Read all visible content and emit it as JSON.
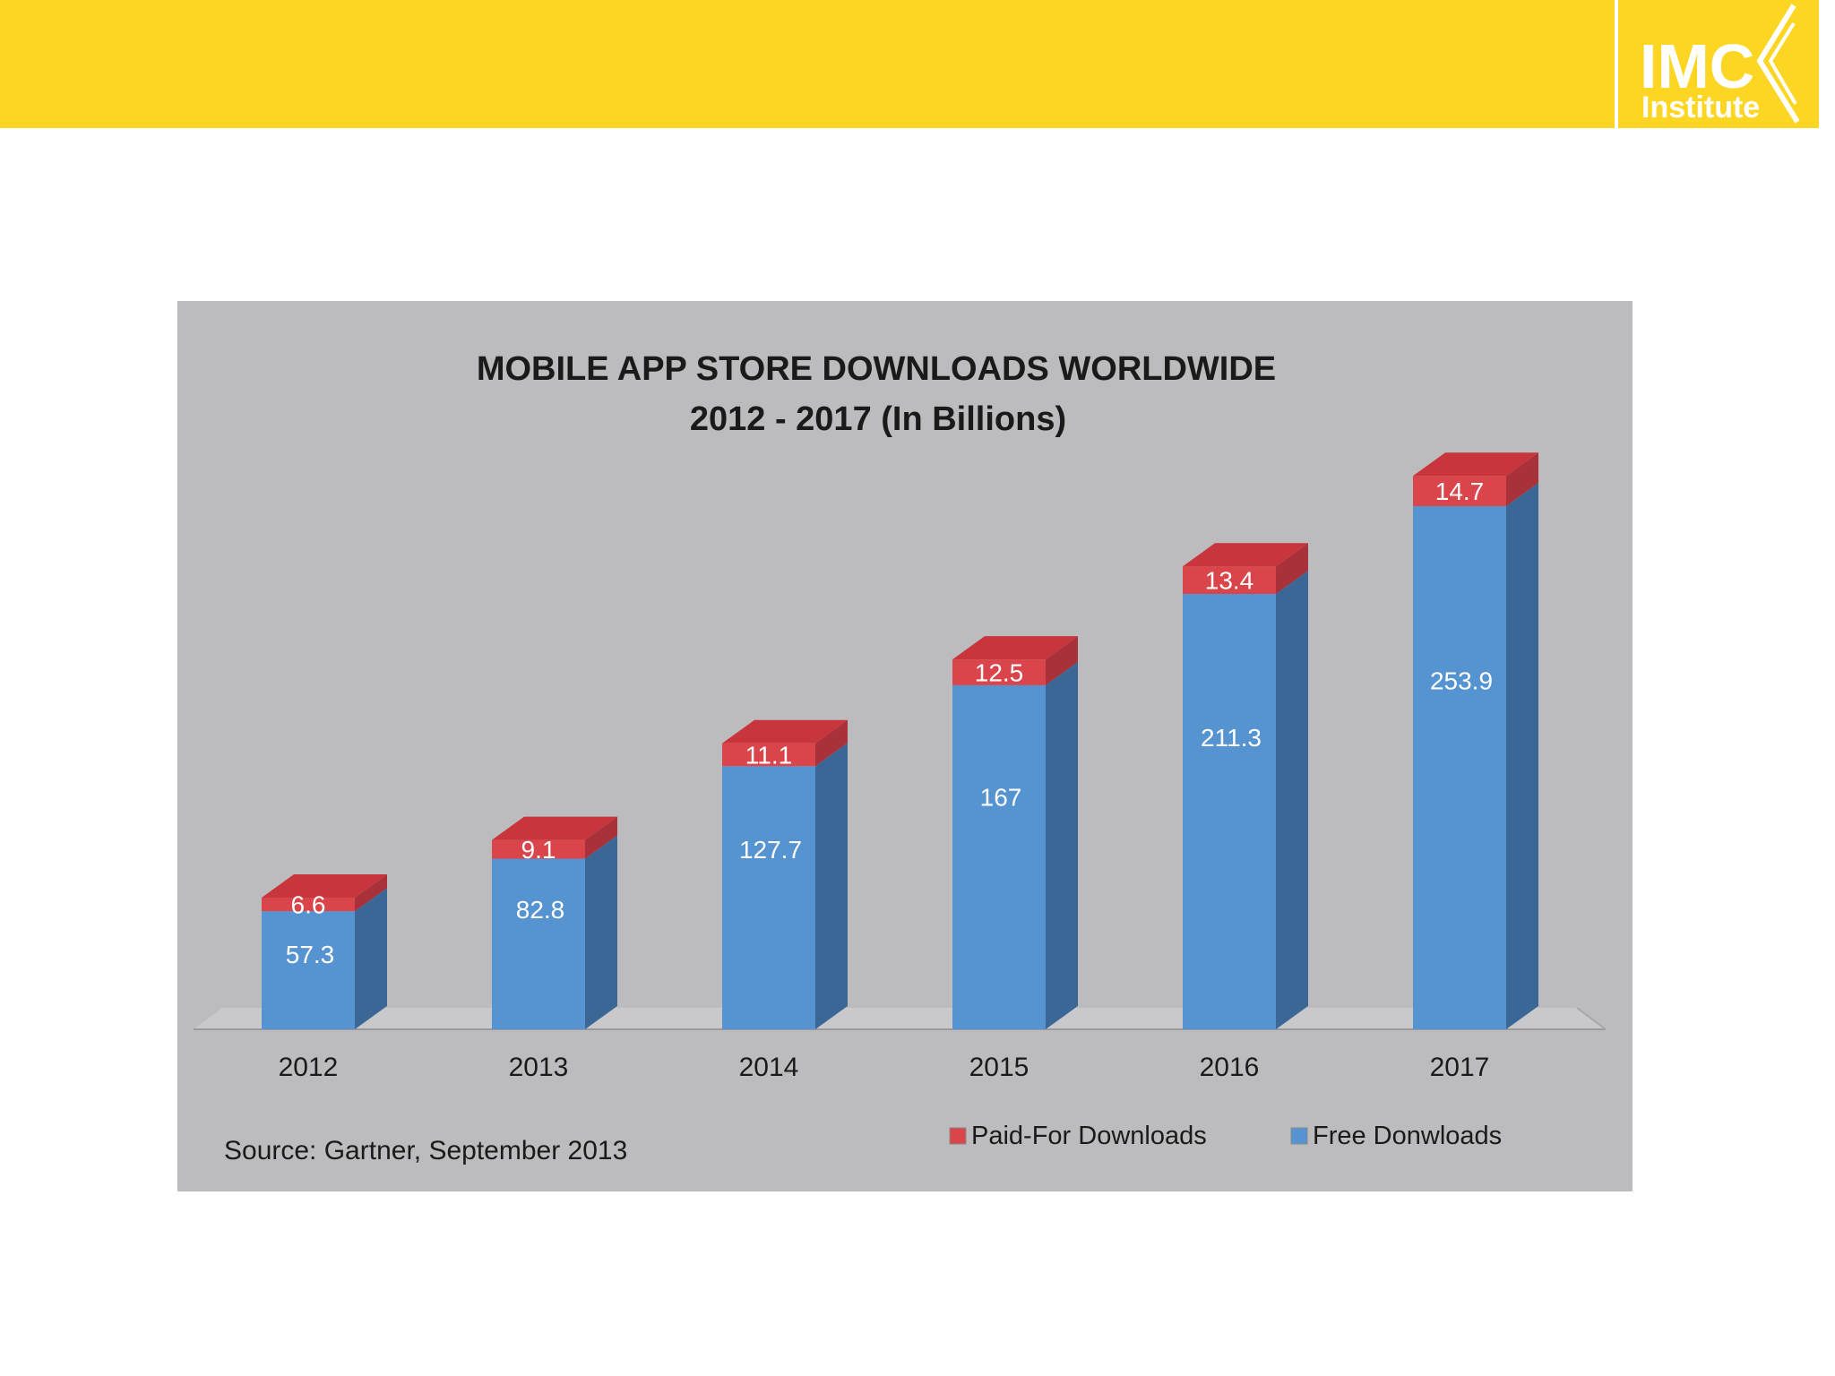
{
  "logo": {
    "text_main": "IMC",
    "text_sub": "Institute"
  },
  "chart_data": {
    "type": "bar",
    "stacked": true,
    "title": "MOBILE APP STORE DOWNLOADS WORLDWIDE",
    "subtitle": "2012 - 2017 (In Billions)",
    "categories": [
      "2012",
      "2013",
      "2014",
      "2015",
      "2016",
      "2017"
    ],
    "series": [
      {
        "name": "Free Donwloads",
        "values": [
          57.3,
          82.8,
          127.7,
          167,
          211.3,
          253.9
        ],
        "label_text": [
          "57.3",
          "82.8",
          "127.7",
          "167",
          "211.3",
          "253.9"
        ],
        "color": "#5593d1",
        "side_color": "#3b6796",
        "top_color": "#6aa3db"
      },
      {
        "name": "Paid-For Downloads",
        "values": [
          6.6,
          9.1,
          11.1,
          12.5,
          13.4,
          14.7
        ],
        "label_text": [
          "6.6",
          "9.1",
          "11.1",
          "12.5",
          "13.4",
          "14.7"
        ],
        "color": "#d9454a",
        "side_color": "#a8313a",
        "top_color": "#c9353d"
      }
    ],
    "legend": [
      "Paid-For Downloads",
      "Free Donwloads"
    ],
    "legend_position": "bottom-right",
    "source": "Source: Gartner, September 2013",
    "ylim": [
      0,
      290
    ],
    "grid": false
  }
}
